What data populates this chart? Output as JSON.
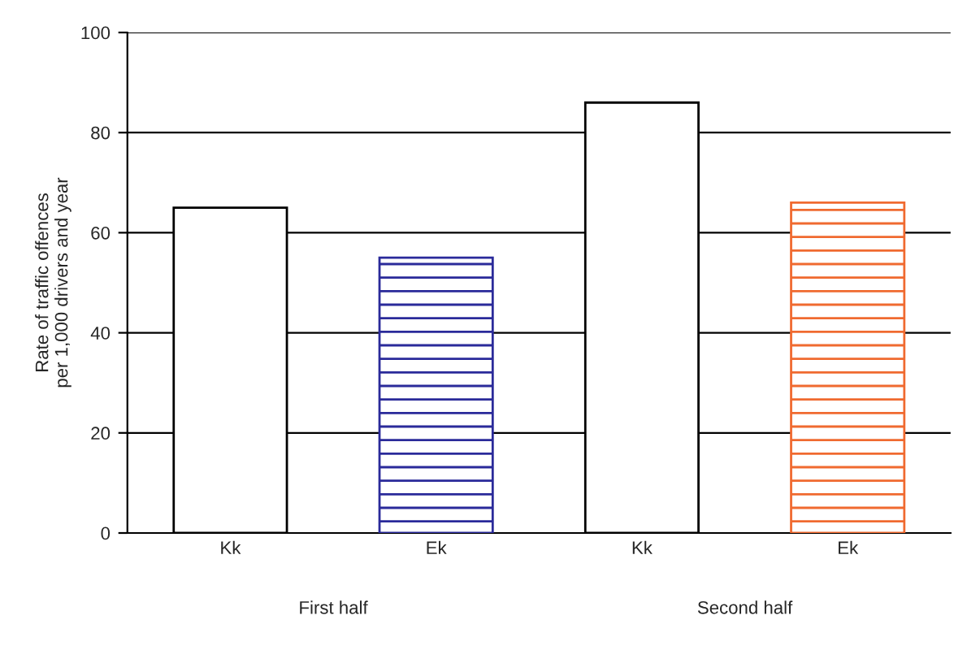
{
  "chart_data": {
    "type": "bar",
    "ylabel": "Rate of traffic offences\nper 1,000 drivers and year",
    "categories": [
      "Kk",
      "Ek",
      "Kk",
      "Ek"
    ],
    "values": [
      65,
      55,
      86,
      66
    ],
    "colors": [
      "#ffffff",
      "#2a2a9a",
      "#ffffff",
      "#f06a30"
    ],
    "ylim": [
      0,
      100
    ],
    "yticks": [
      0,
      20,
      40,
      60,
      80,
      100
    ],
    "grid": "y",
    "annotations": [
      "First half",
      "Second half"
    ]
  }
}
